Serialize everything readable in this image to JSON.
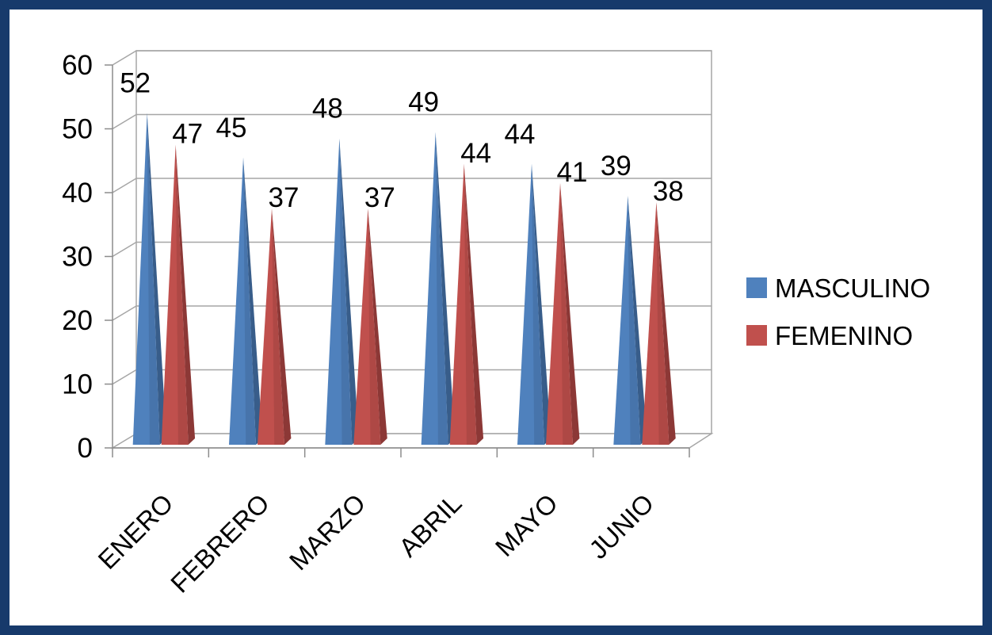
{
  "chart_data": {
    "type": "bar",
    "style": "3d-cone",
    "title": "",
    "xlabel": "",
    "ylabel": "",
    "categories": [
      "ENERO",
      "FEBRERO",
      "MARZO",
      "ABRIL",
      "MAYO",
      "JUNIO"
    ],
    "series": [
      {
        "name": "MASCULINO",
        "values": [
          52,
          45,
          48,
          49,
          44,
          39
        ],
        "color": "#4f81bd",
        "dark": "#385d8a"
      },
      {
        "name": "FEMENINO",
        "values": [
          47,
          37,
          37,
          44,
          41,
          38
        ],
        "color": "#c0504d",
        "dark": "#8c3836"
      }
    ],
    "ylim": [
      0,
      60
    ],
    "yticks": [
      "0",
      "10",
      "20",
      "30",
      "40",
      "50",
      "60"
    ],
    "grid": true,
    "legend": "right",
    "data_labels": true
  }
}
